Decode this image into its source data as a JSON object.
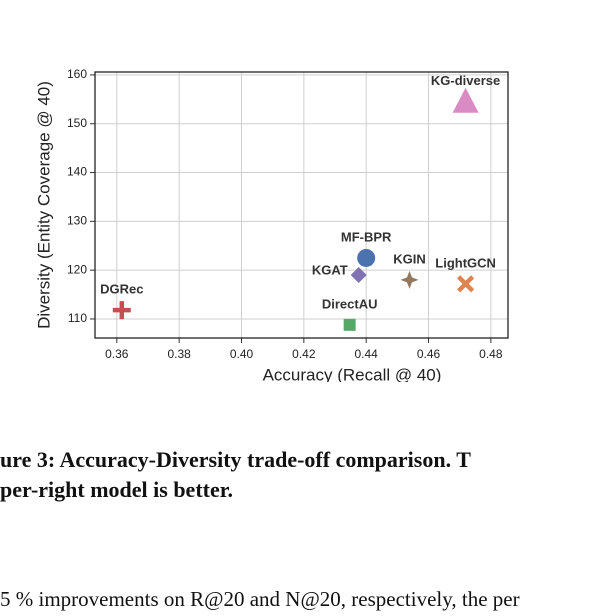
{
  "chart_data": {
    "type": "scatter",
    "x_label": "Accuracy (Recall @ 40)",
    "y_label": "Diversity (Entity Coverage @ 40)",
    "xlim": [
      0.353,
      0.4855
    ],
    "ylim": [
      106.1,
      160.6
    ],
    "xticks": [
      0.36,
      0.38,
      {
        "value": 0.4,
        "label": "0.40"
      },
      0.42,
      0.44,
      0.46,
      0.48
    ],
    "yticks": [
      110,
      120,
      130,
      140,
      150,
      160
    ],
    "grid": true,
    "series": [
      {
        "name": "KG-diverse",
        "color": "#da8bc3",
        "marker": "triangle",
        "x": [
          0.4719
        ],
        "values": [
          154.5
        ]
      },
      {
        "name": "MF-BPR",
        "color": "#4c72b0",
        "marker": "circle",
        "x": [
          0.44
        ],
        "values": [
          122.5
        ]
      },
      {
        "name": "KGAT",
        "color": "#8172b3",
        "marker": "diamond",
        "x": [
          0.4376
        ],
        "values": [
          119
        ]
      },
      {
        "name": "KGIN",
        "color": "#937860",
        "marker": "star",
        "x": [
          0.4539
        ],
        "values": [
          118
        ]
      },
      {
        "name": "LightGCN",
        "color": "#dd8452",
        "marker": "x",
        "x": [
          0.4719
        ],
        "values": [
          117.2
        ]
      },
      {
        "name": "DGRec",
        "color": "#c44e52",
        "marker": "plus",
        "x": [
          0.3616
        ],
        "values": [
          111.8
        ]
      },
      {
        "name": "DirectAU",
        "color": "#55a868",
        "marker": "square",
        "x": [
          0.4347
        ],
        "values": [
          108.8
        ]
      }
    ]
  },
  "caption": {
    "lines": [
      "ure 3: Accuracy-Diversity trade-off comparison. T",
      "per-right model is better."
    ]
  },
  "body": {
    "lines": [
      "5 % improvements on R@20 and N@20, respectively, the per"
    ]
  }
}
